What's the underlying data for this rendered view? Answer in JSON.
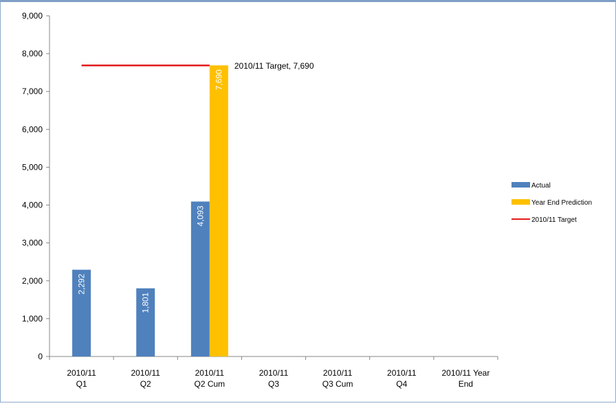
{
  "chart_data": {
    "type": "bar",
    "categories": [
      [
        "2010/11",
        "Q1"
      ],
      [
        "2010/11",
        "Q2"
      ],
      [
        "2010/11",
        "Q2 Cum"
      ],
      [
        "2010/11",
        "Q3"
      ],
      [
        "2010/11",
        "Q3 Cum"
      ],
      [
        "2010/11",
        "Q4"
      ],
      [
        "2010/11 Year",
        "End"
      ]
    ],
    "series": [
      {
        "name": "Actual",
        "color": "#4f81bd",
        "values": [
          2292,
          1801,
          4093,
          null,
          null,
          null,
          null
        ],
        "labels": [
          "2,292",
          "1,801",
          "4,093",
          null,
          null,
          null,
          null
        ]
      },
      {
        "name": "Year End Prediction",
        "color": "#ffc000",
        "values": [
          null,
          null,
          7690,
          null,
          null,
          null,
          null
        ],
        "labels": [
          null,
          null,
          "7,690",
          null,
          null,
          null,
          null
        ]
      }
    ],
    "target_line": {
      "name": "2010/11 Target",
      "color": "#e31a1c",
      "value": 7690,
      "from_category": 0,
      "to_category": 2,
      "annotation": "2010/11 Target, 7,690"
    },
    "yticks": [
      "0",
      "1,000",
      "2,000",
      "3,000",
      "4,000",
      "5,000",
      "6,000",
      "7,000",
      "8,000",
      "9,000"
    ],
    "ylim": [
      0,
      9000
    ],
    "ystep": 1000,
    "legend_position": "right",
    "grid": false
  }
}
